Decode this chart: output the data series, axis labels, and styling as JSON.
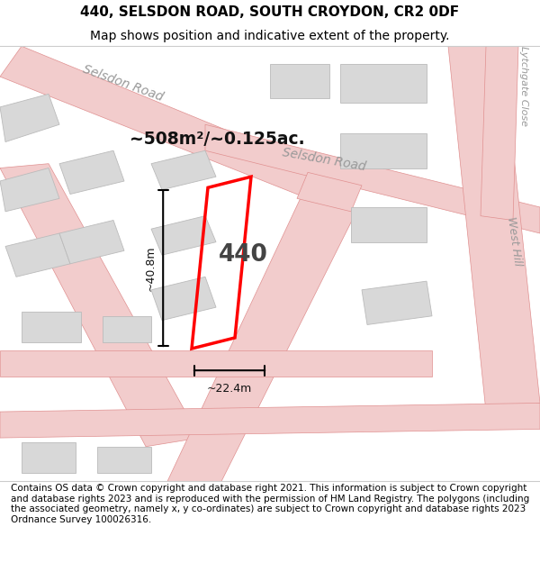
{
  "title": "440, SELSDON ROAD, SOUTH CROYDON, CR2 0DF",
  "subtitle": "Map shows position and indicative extent of the property.",
  "footer": "Contains OS data © Crown copyright and database right 2021. This information is subject to Crown copyright and database rights 2023 and is reproduced with the permission of HM Land Registry. The polygons (including the associated geometry, namely x, y co-ordinates) are subject to Crown copyright and database rights 2023 Ordnance Survey 100026316.",
  "map_bg": "#ffffff",
  "road_color": "#f2cccc",
  "road_stroke": "#e09090",
  "building_fill": "#d8d8d8",
  "building_stroke": "#bbbbbb",
  "highlight_color": "#ff0000",
  "label_440": "440",
  "area_text": "~508m²/~0.125ac.",
  "dim_width": "~22.4m",
  "dim_height": "~40.8m",
  "road1_label": "Selsdon Road",
  "road2_label": "Selsdon Road",
  "road3_label": "West Hill",
  "road4_label": "Lytchgate Close",
  "title_fontsize": 11,
  "subtitle_fontsize": 10,
  "footer_fontsize": 7.5
}
